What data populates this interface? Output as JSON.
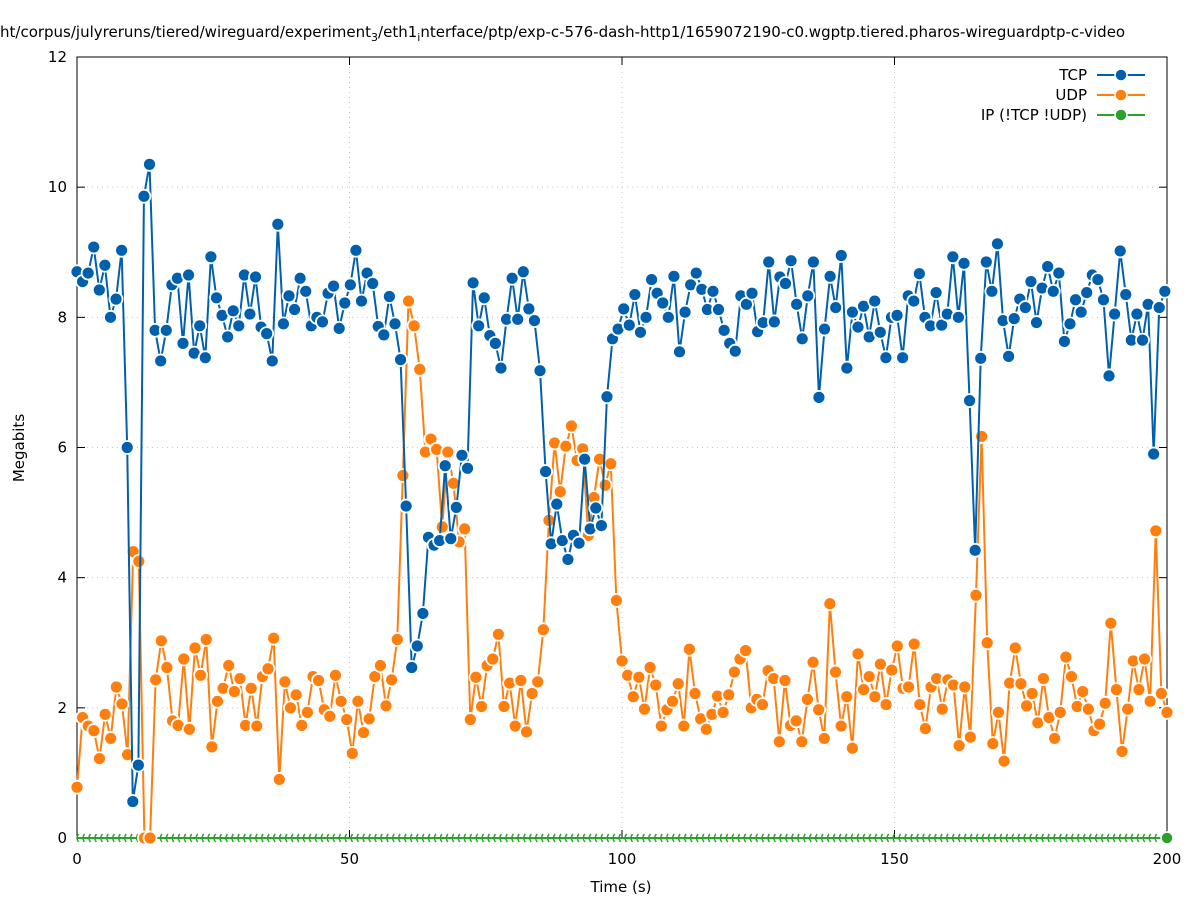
{
  "chart_data": {
    "type": "line",
    "title_parts": [
      {
        "text": "ht/corpus/julyreruns/tiered/wireguard/experiment",
        "sub": false
      },
      {
        "text": "3",
        "sub": true
      },
      {
        "text": "/eth1",
        "sub": false
      },
      {
        "text": "i",
        "sub": true
      },
      {
        "text": "nterface/ptp/exp-c-576-dash-http1/1659072190-c0.wgptp.tiered.pharos-wireguardptp-c-video",
        "sub": false
      }
    ],
    "xlabel": "Time (s)",
    "ylabel": "Megabits",
    "xlim": [
      0,
      200
    ],
    "ylim": [
      0,
      12
    ],
    "xticks": [
      "0",
      "50",
      "100",
      "150",
      "200"
    ],
    "yticks": [
      "0",
      "2",
      "4",
      "6",
      "8",
      "10",
      "12"
    ],
    "grid": true,
    "legend_position": "top-right",
    "series": [
      {
        "name": "TCP",
        "color": "#0060ad",
        "x_start": 0,
        "x_end": 199.6,
        "values": [
          8.7,
          8.55,
          8.68,
          9.08,
          8.42,
          8.8,
          8.0,
          8.28,
          9.03,
          6.0,
          0.56,
          1.12,
          9.86,
          10.35,
          7.8,
          7.33,
          7.8,
          8.5,
          8.6,
          7.6,
          8.65,
          7.45,
          7.87,
          7.38,
          8.93,
          8.3,
          8.03,
          7.7,
          8.1,
          7.87,
          8.65,
          8.05,
          8.62,
          7.85,
          7.75,
          7.33,
          9.43,
          7.9,
          8.33,
          8.12,
          8.6,
          8.4,
          7.87,
          8.0,
          7.93,
          8.37,
          8.48,
          7.83,
          8.22,
          8.5,
          9.03,
          8.25,
          8.68,
          8.52,
          7.86,
          7.73,
          8.32,
          7.9,
          7.35,
          5.1,
          2.62,
          2.95,
          3.45,
          4.62,
          4.5,
          4.57,
          5.72,
          4.6,
          5.08,
          5.88,
          5.68,
          8.53,
          7.87,
          8.3,
          7.72,
          7.6,
          7.22,
          7.97,
          8.6,
          7.97,
          8.7,
          8.13,
          7.95,
          7.18,
          5.63,
          4.52,
          5.13,
          4.57,
          4.28,
          4.65,
          4.53,
          5.82,
          4.75,
          5.07,
          4.8,
          6.78,
          7.67,
          7.82,
          8.13,
          7.88,
          8.35,
          7.77,
          8.0,
          8.58,
          8.37,
          8.22,
          8.0,
          8.63,
          7.47,
          8.08,
          8.5,
          8.68,
          8.43,
          8.12,
          8.4,
          8.12,
          7.8,
          7.6,
          7.48,
          8.33,
          8.2,
          8.37,
          7.78,
          7.92,
          8.85,
          7.93,
          8.62,
          8.52,
          8.87,
          8.2,
          7.67,
          8.33,
          8.85,
          6.77,
          7.82,
          8.63,
          8.15,
          8.95,
          7.22,
          8.08,
          7.85,
          8.17,
          7.7,
          8.25,
          7.77,
          7.38,
          8.0,
          8.03,
          7.38,
          8.33,
          8.25,
          8.67,
          8.0,
          7.87,
          8.38,
          7.88,
          8.05,
          8.93,
          8.0,
          8.83,
          6.72,
          4.42,
          7.37,
          8.85,
          8.4,
          9.13,
          7.95,
          7.4,
          7.98,
          8.28,
          8.15,
          8.55,
          7.92,
          8.45,
          8.78,
          8.4,
          8.68,
          7.63,
          7.9,
          8.27,
          8.08,
          8.38,
          8.65,
          8.58,
          8.27,
          7.1,
          8.05,
          9.02,
          8.35,
          7.65,
          8.05,
          7.65,
          8.2,
          5.9,
          8.15,
          8.4
        ]
      },
      {
        "name": "UDP",
        "color": "#ff7f0e",
        "x_start": 0,
        "x_end": 200,
        "values": [
          0.78,
          1.85,
          1.72,
          1.65,
          1.22,
          1.9,
          1.53,
          2.32,
          2.06,
          1.28,
          4.4,
          4.25,
          0.0,
          0.0,
          2.43,
          3.03,
          2.62,
          1.8,
          1.73,
          2.75,
          1.67,
          2.92,
          2.5,
          3.05,
          1.4,
          2.1,
          2.3,
          2.65,
          2.25,
          2.45,
          1.73,
          2.3,
          1.72,
          2.48,
          2.6,
          3.07,
          0.9,
          2.4,
          2.0,
          2.2,
          1.73,
          1.93,
          2.48,
          2.42,
          1.97,
          1.87,
          2.5,
          2.1,
          1.82,
          1.3,
          2.1,
          1.62,
          1.83,
          2.48,
          2.65,
          2.03,
          2.43,
          3.05,
          5.57,
          8.25,
          7.87,
          7.2,
          5.93,
          6.13,
          5.97,
          4.78,
          5.93,
          5.45,
          4.55,
          4.75,
          1.82,
          2.47,
          2.02,
          2.65,
          2.75,
          3.13,
          2.02,
          2.38,
          1.72,
          2.42,
          1.63,
          2.22,
          2.4,
          3.2,
          4.88,
          6.07,
          5.32,
          6.02,
          6.33,
          5.8,
          5.98,
          4.65,
          5.23,
          5.82,
          5.42,
          5.75,
          3.65,
          2.72,
          2.5,
          2.17,
          2.47,
          1.98,
          2.62,
          2.35,
          1.72,
          1.97,
          2.1,
          2.37,
          1.72,
          2.9,
          2.22,
          1.83,
          1.67,
          1.9,
          2.18,
          1.93,
          2.2,
          2.55,
          2.75,
          2.88,
          2.0,
          2.13,
          2.05,
          2.57,
          2.45,
          1.48,
          2.42,
          1.73,
          1.8,
          1.48,
          2.13,
          2.7,
          1.97,
          1.53,
          3.6,
          2.55,
          1.72,
          2.17,
          1.38,
          2.83,
          2.28,
          2.48,
          2.17,
          2.67,
          2.05,
          2.58,
          2.95,
          2.3,
          2.32,
          2.98,
          2.05,
          1.68,
          2.32,
          2.45,
          1.98,
          2.43,
          2.35,
          1.42,
          2.32,
          1.55,
          3.73,
          6.17,
          3.0,
          1.45,
          1.93,
          1.18,
          2.38,
          2.92,
          2.37,
          2.03,
          2.22,
          1.77,
          2.45,
          1.85,
          1.53,
          1.93,
          2.78,
          2.48,
          2.02,
          2.25,
          1.98,
          1.65,
          1.75,
          2.07,
          3.3,
          2.28,
          1.33,
          1.98,
          2.72,
          2.28,
          2.75,
          2.1,
          4.72,
          2.22,
          1.93
        ]
      },
      {
        "name": "IP (!TCP  !UDP)",
        "color": "#2ca02c",
        "x_start": 0,
        "x_end": 200,
        "constant_value": 0,
        "count": 184
      }
    ]
  }
}
